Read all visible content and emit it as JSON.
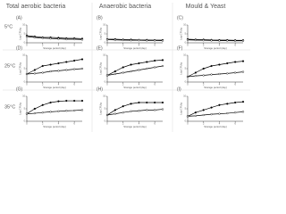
{
  "headers": [
    "Total aerobic bacteria",
    "Anaerobic bacteria",
    "Mould & Yeast"
  ],
  "rows": [
    "5°C",
    "25°C",
    "35°C"
  ],
  "chart_data": [
    {
      "type": "line",
      "panel": "(A)",
      "xlabel": "Storage period (day)",
      "ylabel": "Log CFU/g",
      "x": [
        0,
        1,
        2,
        3,
        4,
        5,
        6,
        7
      ],
      "xlim": [
        0,
        7
      ],
      "xticks": [
        0,
        2,
        4,
        6
      ],
      "ylim": [
        0,
        10
      ],
      "yticks": [
        0,
        5,
        10
      ],
      "series": [
        {
          "color": "#000000",
          "values": [
            4,
            3.5,
            3,
            3,
            2.8,
            2.5,
            2.5,
            2.3
          ]
        },
        {
          "color": "#000000",
          "values": [
            3.5,
            3,
            2.6,
            2.4,
            2.2,
            2,
            2,
            1.8
          ]
        }
      ]
    },
    {
      "type": "line",
      "panel": "(B)",
      "xlabel": "Storage period (day)",
      "ylabel": "Log CFU/g",
      "x": [
        0,
        1,
        2,
        3,
        4,
        5,
        6,
        7
      ],
      "xlim": [
        0,
        7
      ],
      "xticks": [
        0,
        2,
        4,
        6
      ],
      "ylim": [
        0,
        10
      ],
      "yticks": [
        0,
        5,
        10
      ],
      "series": [
        {
          "color": "#000000",
          "values": [
            2,
            2,
            1.8,
            1.8,
            1.6,
            1.6,
            1.5,
            1.5
          ]
        },
        {
          "color": "#000000",
          "values": [
            1.8,
            1.6,
            1.5,
            1.4,
            1.4,
            1.3,
            1.3,
            1.2
          ]
        }
      ]
    },
    {
      "type": "line",
      "panel": "(C)",
      "xlabel": "Storage period (day)",
      "ylabel": "Log CFU/g",
      "x": [
        0,
        1,
        2,
        3,
        4,
        5,
        6,
        7
      ],
      "xlim": [
        0,
        7
      ],
      "xticks": [
        0,
        2,
        4,
        6
      ],
      "ylim": [
        0,
        10
      ],
      "yticks": [
        0,
        5,
        10
      ],
      "series": [
        {
          "color": "#000000",
          "values": [
            2,
            1.8,
            1.8,
            1.6,
            1.5,
            1.5,
            1.4,
            1.4
          ]
        },
        {
          "color": "#000000",
          "values": [
            1.6,
            1.5,
            1.4,
            1.3,
            1.2,
            1.2,
            1.1,
            1.1
          ]
        }
      ]
    },
    {
      "type": "line",
      "panel": "(D)",
      "xlabel": "Storage period (day)",
      "ylabel": "Log CFU/g",
      "x": [
        0,
        1,
        2,
        3,
        4,
        5,
        6,
        7
      ],
      "xlim": [
        0,
        7
      ],
      "xticks": [
        0,
        2,
        4,
        6
      ],
      "ylim": [
        0,
        10
      ],
      "yticks": [
        0,
        5,
        10
      ],
      "series": [
        {
          "color": "#000000",
          "values": [
            3,
            4.5,
            6,
            6.5,
            7,
            7.5,
            8,
            8.5
          ]
        },
        {
          "color": "#000000",
          "values": [
            3,
            3.2,
            3.5,
            4,
            4.2,
            4.5,
            4.8,
            5
          ]
        }
      ]
    },
    {
      "type": "line",
      "panel": "(E)",
      "xlabel": "Storage period (day)",
      "ylabel": "Log CFU/g",
      "x": [
        0,
        1,
        2,
        3,
        4,
        5,
        6,
        7
      ],
      "xlim": [
        0,
        7
      ],
      "xticks": [
        0,
        2,
        4,
        6
      ],
      "ylim": [
        0,
        10
      ],
      "yticks": [
        0,
        5,
        10
      ],
      "series": [
        {
          "color": "#000000",
          "values": [
            2.5,
            4,
            5.5,
            6.5,
            7,
            7.5,
            8,
            8.2
          ]
        },
        {
          "color": "#000000",
          "values": [
            2.5,
            3,
            3.5,
            4,
            4.5,
            5,
            5.5,
            6
          ]
        }
      ]
    },
    {
      "type": "line",
      "panel": "(F)",
      "xlabel": "Storage period (day)",
      "ylabel": "Log CFU/g",
      "x": [
        0,
        1,
        2,
        3,
        4,
        5,
        6,
        7
      ],
      "xlim": [
        0,
        7
      ],
      "xticks": [
        0,
        2,
        4,
        6
      ],
      "ylim": [
        0,
        10
      ],
      "yticks": [
        0,
        5,
        10
      ],
      "series": [
        {
          "color": "#000000",
          "values": [
            2,
            3.5,
            5,
            6,
            6.5,
            7,
            7.5,
            7.8
          ]
        },
        {
          "color": "#000000",
          "values": [
            2,
            2.3,
            2.5,
            2.8,
            3,
            3.2,
            3.5,
            3.8
          ]
        }
      ]
    },
    {
      "type": "line",
      "panel": "(G)",
      "xlabel": "Storage period (day)",
      "ylabel": "Log CFU/g",
      "x": [
        0,
        1,
        2,
        3,
        4,
        5,
        6,
        7
      ],
      "xlim": [
        0,
        7
      ],
      "xticks": [
        0,
        2,
        4,
        6
      ],
      "ylim": [
        0,
        10
      ],
      "yticks": [
        0,
        5,
        10
      ],
      "series": [
        {
          "color": "#000000",
          "values": [
            3,
            5,
            6.5,
            7.5,
            8,
            8.2,
            8.2,
            8.2
          ]
        },
        {
          "color": "#000000",
          "values": [
            3,
            3.2,
            3.5,
            3.8,
            4,
            4.2,
            4.3,
            4.5
          ]
        }
      ]
    },
    {
      "type": "line",
      "panel": "(H)",
      "xlabel": "Storage period (day)",
      "ylabel": "Log CFU/g",
      "x": [
        0,
        1,
        2,
        3,
        4,
        5,
        6,
        7
      ],
      "xlim": [
        0,
        7
      ],
      "xticks": [
        0,
        2,
        4,
        6
      ],
      "ylim": [
        0,
        10
      ],
      "yticks": [
        0,
        5,
        10
      ],
      "series": [
        {
          "color": "#000000",
          "values": [
            2.5,
            4.5,
            6,
            7,
            7.5,
            7.5,
            7.5,
            7.5
          ]
        },
        {
          "color": "#000000",
          "values": [
            2.5,
            3,
            3.5,
            4,
            4.2,
            4.5,
            4.5,
            4.8
          ]
        }
      ]
    },
    {
      "type": "line",
      "panel": "(I)",
      "xlabel": "Storage period (day)",
      "ylabel": "Log CFU/g",
      "x": [
        0,
        1,
        2,
        3,
        4,
        5,
        6,
        7
      ],
      "xlim": [
        0,
        7
      ],
      "xticks": [
        0,
        2,
        4,
        6
      ],
      "ylim": [
        0,
        10
      ],
      "yticks": [
        0,
        5,
        10
      ],
      "series": [
        {
          "color": "#000000",
          "values": [
            2,
            3.5,
            4.5,
            5.5,
            6.5,
            7,
            7.5,
            7.8
          ]
        },
        {
          "color": "#000000",
          "values": [
            2,
            2.2,
            2.5,
            2.8,
            3,
            3.2,
            3.5,
            3.8
          ]
        }
      ]
    }
  ]
}
